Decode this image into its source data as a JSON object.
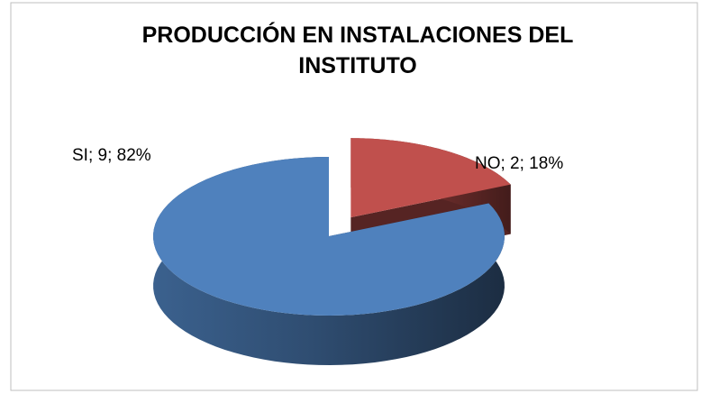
{
  "chart_data": {
    "type": "pie3d",
    "title": "PRODUCCIÓN EN INSTALACIONES DEL INSTITUTO",
    "values": [
      9,
      2
    ],
    "value_labels": [
      "SI; 9; 82%",
      "NO; 2; 18%"
    ],
    "colors": [
      "#4f81bd",
      "#c0504d"
    ],
    "exploded": [
      false,
      true
    ]
  }
}
